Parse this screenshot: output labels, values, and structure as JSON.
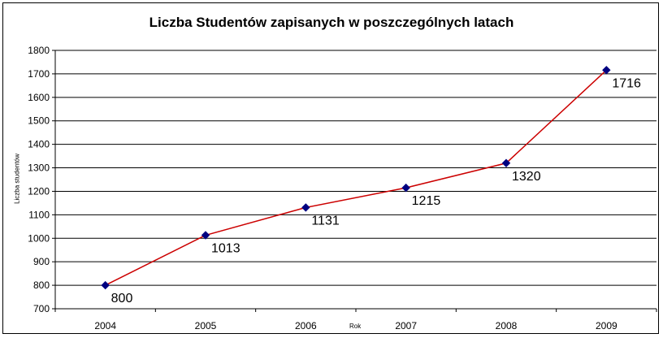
{
  "chart_data": {
    "type": "line",
    "title": "Liczba Studentów zapisanych w poszczególnych latach",
    "xlabel": "Rok",
    "ylabel": "Liczba studentów",
    "categories": [
      "2004",
      "2005",
      "2006",
      "2007",
      "2008",
      "2009"
    ],
    "series": [
      {
        "values": [
          800,
          1013,
          1131,
          1215,
          1320,
          1716
        ]
      }
    ],
    "data_labels": [
      "800",
      "1013",
      "1131",
      "1215",
      "1320",
      "1716"
    ],
    "yticks": [
      "700",
      "800",
      "900",
      "1000",
      "1100",
      "1200",
      "1300",
      "1400",
      "1500",
      "1600",
      "1700",
      "1800"
    ],
    "ylim": [
      700,
      1800
    ],
    "grid": true,
    "legend": "none",
    "line_color": "#cc0000",
    "marker_color": "#000080"
  }
}
